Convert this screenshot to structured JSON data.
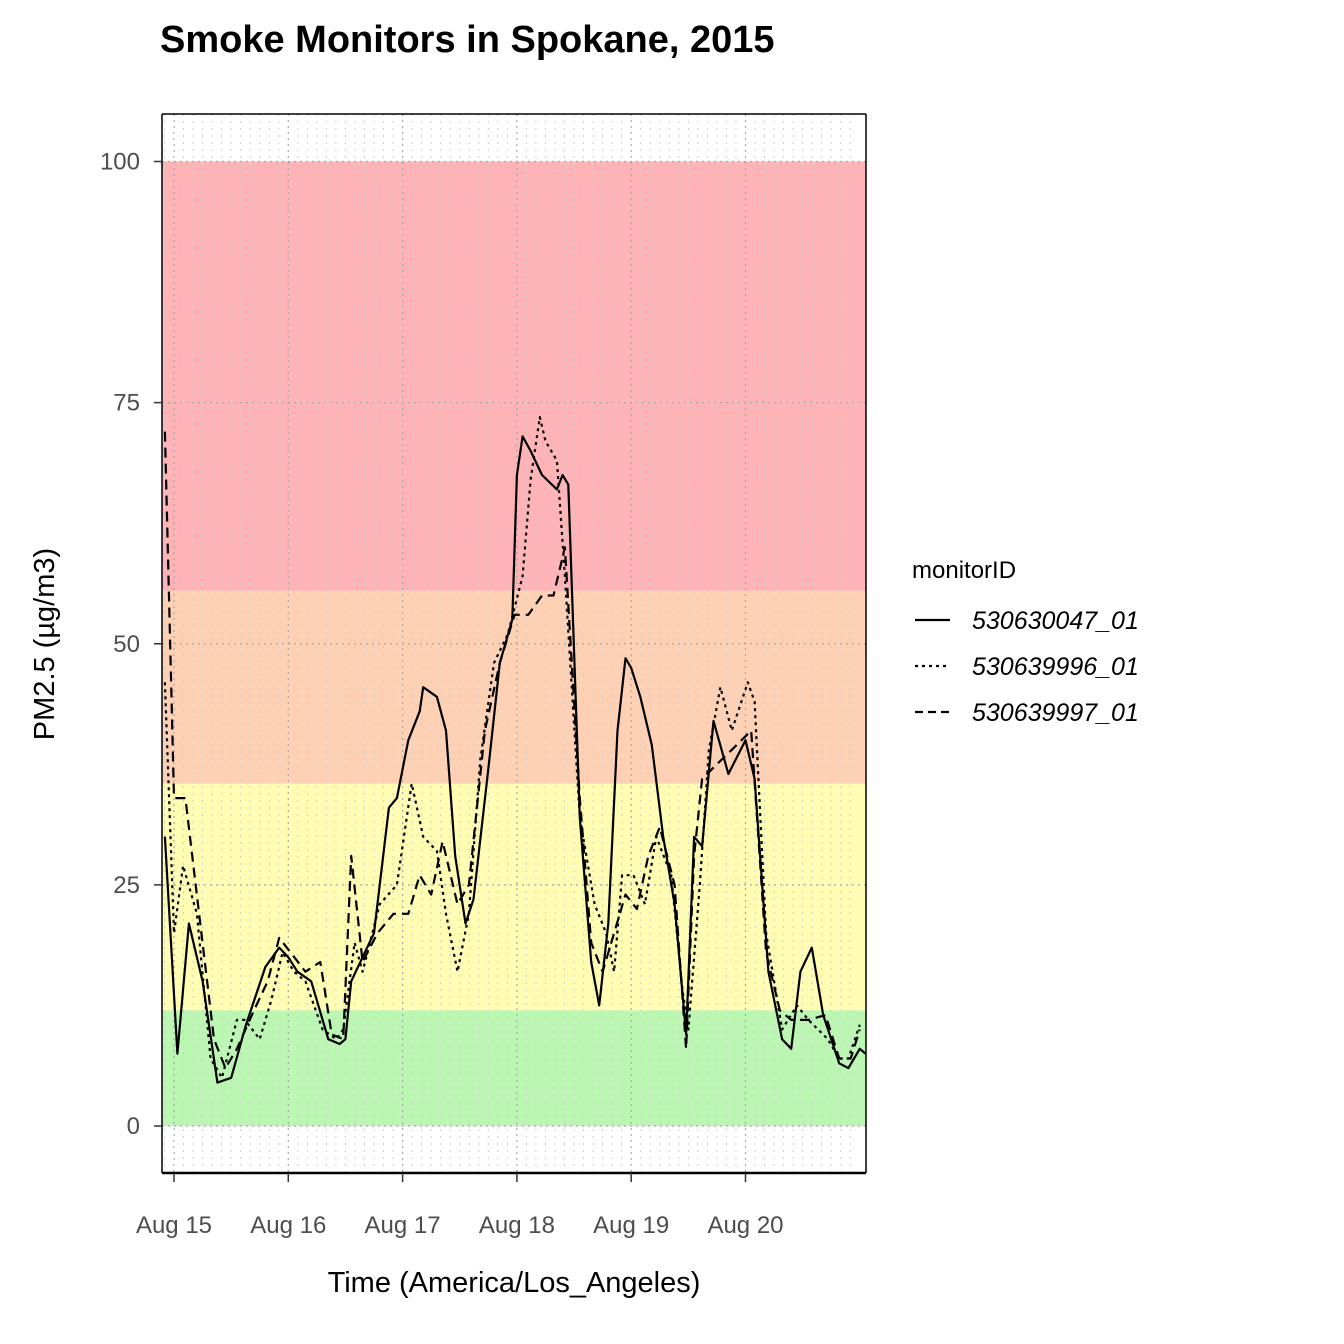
{
  "chart_data": {
    "type": "line",
    "title": "Smoke Monitors in Spokane, 2015",
    "xlabel": "Time (America/Los_Angeles)",
    "ylabel": "PM2.5 (µg/m3)",
    "x_unit": "days since Aug 15 00:00",
    "xlim": [
      -0.1,
      6.05
    ],
    "ylim": [
      -5,
      105
    ],
    "x_ticks": [
      {
        "value": 0,
        "label": "Aug 15"
      },
      {
        "value": 1,
        "label": "Aug 16"
      },
      {
        "value": 2,
        "label": "Aug 17"
      },
      {
        "value": 3,
        "label": "Aug 18"
      },
      {
        "value": 4,
        "label": "Aug 19"
      },
      {
        "value": 5,
        "label": "Aug 20"
      }
    ],
    "y_ticks": [
      0,
      25,
      50,
      75,
      100
    ],
    "grid": true,
    "aqi_bands": [
      {
        "from": 0,
        "to": 12,
        "color": "#bbf7b3"
      },
      {
        "from": 12,
        "to": 35.5,
        "color": "#fefdb3"
      },
      {
        "from": 35.5,
        "to": 55.5,
        "color": "#fed1b4"
      },
      {
        "from": 55.5,
        "to": 100,
        "color": "#feb3b6"
      }
    ],
    "legend": {
      "title": "monitorID",
      "position": "right"
    },
    "series": [
      {
        "name": "530630047_01",
        "dash": "solid",
        "points": [
          [
            -0.08,
            30
          ],
          [
            0.03,
            7.5
          ],
          [
            0.13,
            21
          ],
          [
            0.25,
            15
          ],
          [
            0.38,
            4.5
          ],
          [
            0.5,
            5
          ],
          [
            0.63,
            10.5
          ],
          [
            0.8,
            16.5
          ],
          [
            0.92,
            18.5
          ],
          [
            1.0,
            17.5
          ],
          [
            1.08,
            16
          ],
          [
            1.2,
            15
          ],
          [
            1.35,
            9
          ],
          [
            1.45,
            8.5
          ],
          [
            1.5,
            9
          ],
          [
            1.55,
            15
          ],
          [
            1.65,
            17.5
          ],
          [
            1.75,
            20
          ],
          [
            1.88,
            33
          ],
          [
            1.95,
            34
          ],
          [
            2.05,
            40
          ],
          [
            2.15,
            43
          ],
          [
            2.18,
            45.5
          ],
          [
            2.3,
            44.5
          ],
          [
            2.38,
            41
          ],
          [
            2.46,
            28
          ],
          [
            2.55,
            21
          ],
          [
            2.62,
            23.5
          ],
          [
            2.75,
            37
          ],
          [
            2.85,
            48
          ],
          [
            2.96,
            52.5
          ],
          [
            3.0,
            67.5
          ],
          [
            3.05,
            71.5
          ],
          [
            3.12,
            70
          ],
          [
            3.22,
            67.5
          ],
          [
            3.35,
            66
          ],
          [
            3.4,
            67.5
          ],
          [
            3.45,
            66.5
          ],
          [
            3.55,
            32
          ],
          [
            3.65,
            17
          ],
          [
            3.72,
            12.5
          ],
          [
            3.8,
            21
          ],
          [
            3.88,
            41
          ],
          [
            3.95,
            48.5
          ],
          [
            4.0,
            47.5
          ],
          [
            4.08,
            44.5
          ],
          [
            4.18,
            39.5
          ],
          [
            4.28,
            30
          ],
          [
            4.38,
            23
          ],
          [
            4.48,
            9.5
          ],
          [
            4.55,
            30
          ],
          [
            4.62,
            29
          ],
          [
            4.72,
            42
          ],
          [
            4.85,
            36.5
          ],
          [
            5.0,
            40
          ],
          [
            5.08,
            36
          ],
          [
            5.2,
            16
          ],
          [
            5.32,
            9
          ],
          [
            5.4,
            8
          ],
          [
            5.48,
            16
          ],
          [
            5.58,
            18.5
          ],
          [
            5.68,
            11.5
          ],
          [
            5.82,
            6.5
          ],
          [
            5.9,
            6
          ],
          [
            6.0,
            8
          ],
          [
            6.05,
            7.5
          ]
        ]
      },
      {
        "name": "530639996_01",
        "dash": "3,4",
        "points": [
          [
            -0.08,
            46
          ],
          [
            0.0,
            20
          ],
          [
            0.08,
            27
          ],
          [
            0.2,
            22
          ],
          [
            0.32,
            7
          ],
          [
            0.42,
            5
          ],
          [
            0.55,
            11
          ],
          [
            0.62,
            11
          ],
          [
            0.75,
            9
          ],
          [
            0.85,
            13
          ],
          [
            0.95,
            18
          ],
          [
            1.05,
            16
          ],
          [
            1.15,
            15
          ],
          [
            1.3,
            10
          ],
          [
            1.42,
            9
          ],
          [
            1.48,
            10
          ],
          [
            1.58,
            19
          ],
          [
            1.65,
            16
          ],
          [
            1.8,
            23
          ],
          [
            1.95,
            25
          ],
          [
            2.08,
            35.5
          ],
          [
            2.18,
            30
          ],
          [
            2.3,
            28.5
          ],
          [
            2.38,
            22
          ],
          [
            2.48,
            16
          ],
          [
            2.58,
            22
          ],
          [
            2.68,
            38
          ],
          [
            2.8,
            48
          ],
          [
            2.92,
            51
          ],
          [
            3.05,
            57
          ],
          [
            3.12,
            67
          ],
          [
            3.2,
            73.5
          ],
          [
            3.25,
            71
          ],
          [
            3.35,
            69
          ],
          [
            3.42,
            57
          ],
          [
            3.55,
            32
          ],
          [
            3.68,
            23
          ],
          [
            3.78,
            20
          ],
          [
            3.85,
            16
          ],
          [
            3.92,
            26
          ],
          [
            4.02,
            26
          ],
          [
            4.12,
            23
          ],
          [
            4.22,
            30
          ],
          [
            4.35,
            26
          ],
          [
            4.45,
            14
          ],
          [
            4.5,
            10
          ],
          [
            4.6,
            25
          ],
          [
            4.68,
            39
          ],
          [
            4.78,
            45.5
          ],
          [
            4.88,
            41
          ],
          [
            5.02,
            46
          ],
          [
            5.08,
            44
          ],
          [
            5.18,
            20
          ],
          [
            5.32,
            10
          ],
          [
            5.45,
            12.5
          ],
          [
            5.55,
            11
          ],
          [
            5.72,
            9
          ],
          [
            5.82,
            7
          ],
          [
            5.9,
            7
          ],
          [
            6.0,
            10.5
          ]
        ]
      },
      {
        "name": "530639997_01",
        "dash": "10,6",
        "points": [
          [
            -0.08,
            72
          ],
          [
            0.0,
            34
          ],
          [
            0.1,
            34
          ],
          [
            0.22,
            22
          ],
          [
            0.35,
            9
          ],
          [
            0.45,
            6
          ],
          [
            0.55,
            8
          ],
          [
            0.7,
            12
          ],
          [
            0.82,
            15
          ],
          [
            0.92,
            19.5
          ],
          [
            1.02,
            18
          ],
          [
            1.15,
            16
          ],
          [
            1.28,
            17
          ],
          [
            1.38,
            9.5
          ],
          [
            1.48,
            9
          ],
          [
            1.55,
            28
          ],
          [
            1.65,
            17
          ],
          [
            1.78,
            20
          ],
          [
            1.92,
            22
          ],
          [
            2.05,
            22
          ],
          [
            2.15,
            26
          ],
          [
            2.25,
            24
          ],
          [
            2.35,
            29.5
          ],
          [
            2.48,
            23
          ],
          [
            2.58,
            25
          ],
          [
            2.72,
            41
          ],
          [
            2.85,
            48
          ],
          [
            2.98,
            53
          ],
          [
            3.1,
            53
          ],
          [
            3.22,
            55
          ],
          [
            3.32,
            55
          ],
          [
            3.42,
            60
          ],
          [
            3.55,
            34
          ],
          [
            3.65,
            19
          ],
          [
            3.75,
            16
          ],
          [
            3.85,
            20
          ],
          [
            3.95,
            24
          ],
          [
            4.05,
            22.5
          ],
          [
            4.15,
            28
          ],
          [
            4.25,
            31
          ],
          [
            4.38,
            25
          ],
          [
            4.48,
            8
          ],
          [
            4.55,
            28
          ],
          [
            4.62,
            36
          ],
          [
            4.75,
            37.5
          ],
          [
            4.88,
            39
          ],
          [
            5.05,
            41
          ],
          [
            5.18,
            18
          ],
          [
            5.3,
            12
          ],
          [
            5.4,
            11
          ],
          [
            5.55,
            11
          ],
          [
            5.7,
            11.5
          ],
          [
            5.82,
            7
          ],
          [
            5.92,
            7
          ],
          [
            6.0,
            10
          ]
        ]
      }
    ]
  }
}
